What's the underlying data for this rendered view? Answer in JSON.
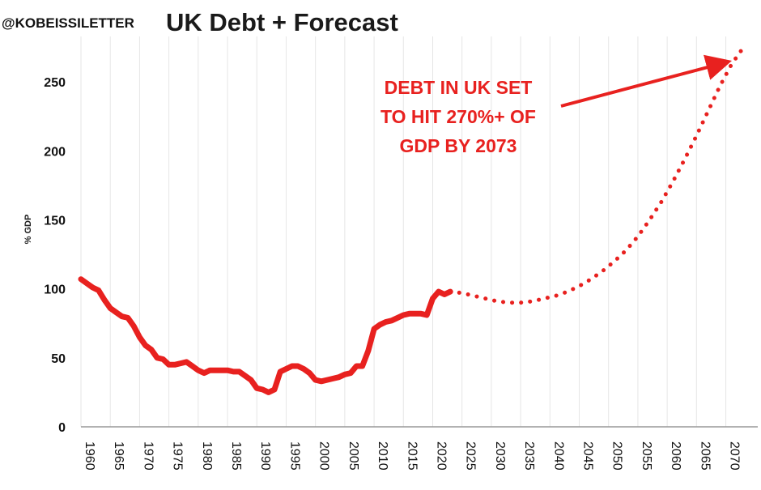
{
  "source_handle": "@KOBEISSILETTER",
  "chart_data": {
    "type": "line",
    "title": "UK Debt + Forecast",
    "xlabel": "",
    "ylabel": "% GDP",
    "xlim": [
      1960,
      2074
    ],
    "ylim": [
      0,
      290
    ],
    "yticks": [
      0,
      50,
      100,
      150,
      200,
      250
    ],
    "xticks": [
      "1960",
      "1965",
      "1970",
      "1975",
      "1980",
      "1985",
      "1990",
      "1995",
      "2000",
      "2005",
      "2010",
      "2015",
      "2020",
      "2025",
      "2030",
      "2035",
      "2040",
      "2045",
      "2050",
      "2055",
      "2060",
      "2065",
      "2070"
    ],
    "grid": "vertical",
    "color": "#e8211f",
    "series": [
      {
        "style": "solid",
        "x": [
          1960,
          1961,
          1962,
          1963,
          1964,
          1965,
          1966,
          1967,
          1968,
          1969,
          1970,
          1971,
          1972,
          1973,
          1974,
          1975,
          1976,
          1977,
          1978,
          1979,
          1980,
          1981,
          1982,
          1983,
          1984,
          1985,
          1986,
          1987,
          1988,
          1989,
          1990,
          1991,
          1992,
          1993,
          1994,
          1995,
          1996,
          1997,
          1998,
          1999,
          2000,
          2001,
          2002,
          2003,
          2004,
          2005,
          2006,
          2007,
          2008,
          2009,
          2010,
          2011,
          2012,
          2013,
          2014,
          2015,
          2016,
          2017,
          2018,
          2019,
          2020,
          2021,
          2022,
          2023
        ],
        "y": [
          107,
          104,
          101,
          99,
          92,
          86,
          83,
          80,
          79,
          73,
          65,
          59,
          56,
          50,
          49,
          45,
          45,
          46,
          47,
          44,
          41,
          39,
          41,
          41,
          41,
          41,
          40,
          40,
          37,
          34,
          28,
          27,
          25,
          27,
          40,
          42,
          44,
          44,
          42,
          39,
          34,
          33,
          34,
          35,
          36,
          38,
          39,
          44,
          44,
          55,
          71,
          74,
          76,
          77,
          79,
          81,
          82,
          82,
          82,
          81,
          93,
          98,
          96,
          98
        ]
      },
      {
        "style": "dotted",
        "x": [
          2023,
          2025,
          2027,
          2029,
          2031,
          2033,
          2035,
          2037,
          2039,
          2041,
          2043,
          2045,
          2047,
          2049,
          2051,
          2053,
          2055,
          2057,
          2059,
          2061,
          2063,
          2065,
          2067,
          2069,
          2071,
          2073
        ],
        "y": [
          98,
          97,
          95,
          93,
          91,
          90,
          90,
          91,
          93,
          95,
          98,
          102,
          107,
          113,
          120,
          128,
          138,
          150,
          163,
          178,
          194,
          211,
          229,
          247,
          263,
          275
        ]
      }
    ],
    "annotations": [
      {
        "lines": [
          "DEBT IN UK SET",
          "TO HIT 270%+ OF",
          "GDP BY 2073"
        ],
        "arrow_to_year": 2073,
        "arrow_to_value": 270
      }
    ]
  }
}
